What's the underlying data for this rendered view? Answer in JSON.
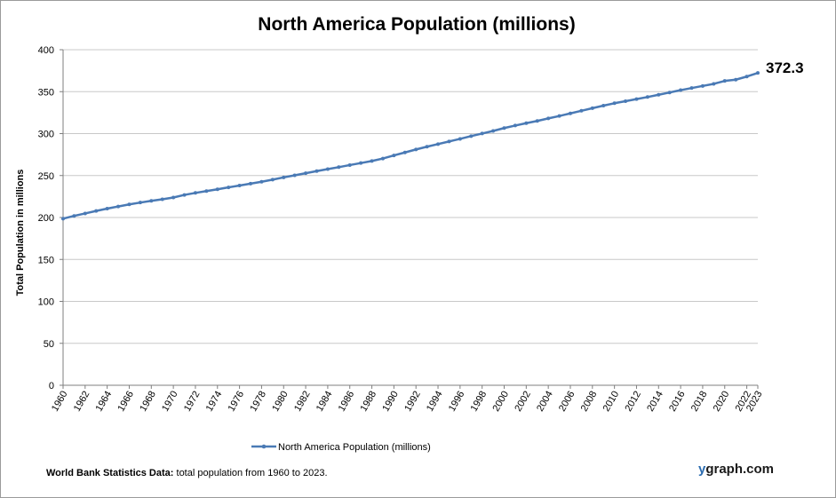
{
  "colors": {
    "series": "#4a7ab5",
    "grid": "#c8c8c8",
    "axis": "#7f7f7f"
  },
  "footer": {
    "source_bold": "World Bank Statistics Data:",
    "source_text": " total population from 1960 to 2023.",
    "brand_y": "y",
    "brand_rest": "graph.com"
  },
  "chart_data": {
    "type": "line",
    "title": "North America Population (millions)",
    "ylabel": "Total Population  in millions",
    "xlabel": "",
    "ylim": [
      0,
      400
    ],
    "yticks": [
      0,
      50,
      100,
      150,
      200,
      250,
      300,
      350,
      400
    ],
    "grid": "horizontal",
    "legend_position": "bottom-center",
    "x": [
      1960,
      1961,
      1962,
      1963,
      1964,
      1965,
      1966,
      1967,
      1968,
      1969,
      1970,
      1971,
      1972,
      1973,
      1974,
      1975,
      1976,
      1977,
      1978,
      1979,
      1980,
      1981,
      1982,
      1983,
      1984,
      1985,
      1986,
      1987,
      1988,
      1989,
      1990,
      1991,
      1992,
      1993,
      1994,
      1995,
      1996,
      1997,
      1998,
      1999,
      2000,
      2001,
      2002,
      2003,
      2004,
      2005,
      2006,
      2007,
      2008,
      2009,
      2010,
      2011,
      2012,
      2013,
      2014,
      2015,
      2016,
      2017,
      2018,
      2019,
      2020,
      2021,
      2022,
      2023
    ],
    "xticks": [
      1960,
      1962,
      1964,
      1966,
      1968,
      1970,
      1972,
      1974,
      1976,
      1978,
      1980,
      1982,
      1984,
      1986,
      1988,
      1990,
      1992,
      1994,
      1996,
      1998,
      2000,
      2002,
      2004,
      2006,
      2008,
      2010,
      2012,
      2014,
      2016,
      2018,
      2020,
      2022,
      2023
    ],
    "series": [
      {
        "name": "North America Population (millions)",
        "values": [
          198.6,
          201.9,
          204.8,
          207.8,
          210.6,
          213.1,
          215.6,
          217.8,
          219.8,
          221.7,
          223.8,
          226.9,
          229.3,
          231.5,
          233.6,
          235.9,
          238.1,
          240.3,
          242.6,
          245.1,
          247.8,
          250.3,
          252.8,
          255.3,
          257.7,
          260.0,
          262.5,
          264.9,
          267.3,
          270.3,
          274.0,
          277.5,
          281.1,
          284.4,
          287.5,
          290.6,
          293.7,
          297.0,
          300.1,
          303.2,
          306.6,
          309.6,
          312.4,
          315.1,
          318.1,
          321.0,
          324.1,
          327.2,
          330.3,
          333.3,
          336.2,
          338.6,
          341.1,
          343.6,
          346.3,
          349.0,
          351.8,
          354.3,
          356.8,
          359.3,
          362.8,
          364.3,
          368.0,
          372.3
        ]
      }
    ],
    "annotations": [
      {
        "x": 2023,
        "text": "372.3"
      }
    ]
  }
}
